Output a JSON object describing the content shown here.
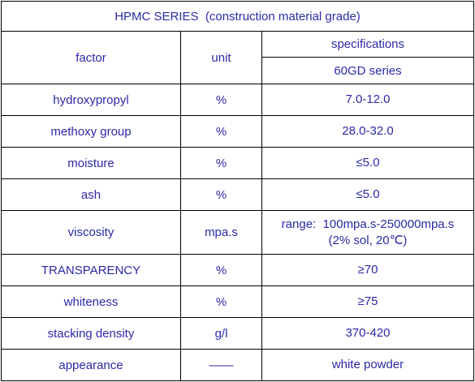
{
  "title": "HPMC SERIES  (construction material grade)",
  "header": {
    "factor": "factor",
    "unit": "unit",
    "specifications": "specifications",
    "series": "60GD series"
  },
  "rows": [
    {
      "factor": "hydroxypropyl",
      "unit": "%",
      "spec": [
        "7.0-12.0"
      ]
    },
    {
      "factor": "methoxy group",
      "unit": "%",
      "spec": [
        "28.0-32.0"
      ]
    },
    {
      "factor": "moisture",
      "unit": "%",
      "spec": [
        "≤5.0"
      ]
    },
    {
      "factor": "ash",
      "unit": "%",
      "spec": [
        "≤5.0"
      ]
    },
    {
      "factor": "viscosity",
      "unit": "mpa.s",
      "spec": [
        "range:  100mpa.s-250000mpa.s",
        "(2% sol, 20℃)"
      ]
    },
    {
      "factor": "TRANSPARENCY",
      "unit": "%",
      "spec": [
        "≥70"
      ]
    },
    {
      "factor": "whiteness",
      "unit": "%",
      "spec": [
        "≥75"
      ]
    },
    {
      "factor": "stacking density",
      "unit": "g/l",
      "spec": [
        "370-420"
      ]
    },
    {
      "factor": "appearance",
      "unit": "——",
      "spec": [
        "white powder"
      ]
    }
  ]
}
